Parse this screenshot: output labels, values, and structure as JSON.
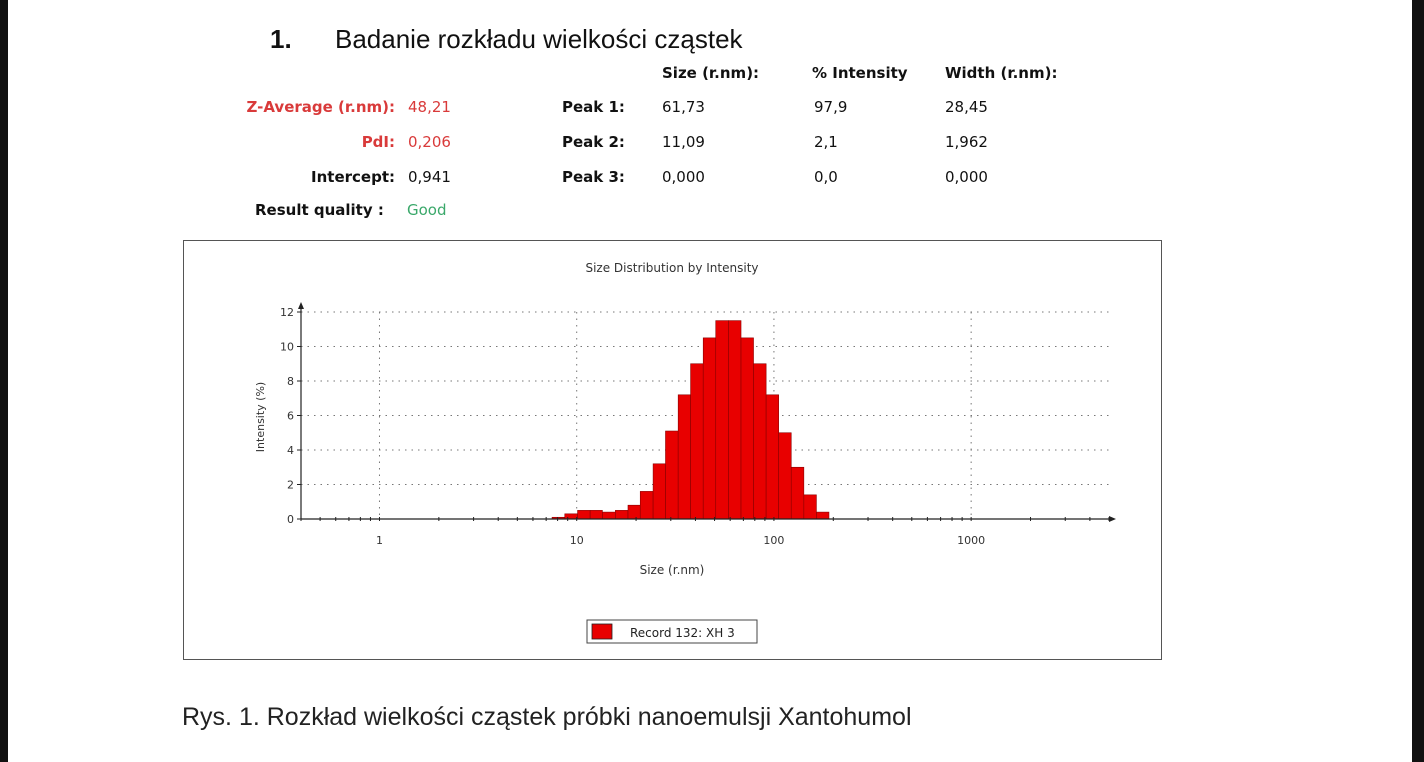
{
  "heading": {
    "number": "1.",
    "title": "Badanie rozkładu wielkości cząstek"
  },
  "results": {
    "columns": {
      "size": "Size (r.nm):",
      "intensity": "% Intensity",
      "width": "Width (r.nm):"
    },
    "z_average": {
      "label": "Z-Average (r.nm):",
      "value": "48,21"
    },
    "pdi": {
      "label": "PdI:",
      "value": "0,206"
    },
    "intercept": {
      "label": "Intercept:",
      "value": "0,941"
    },
    "quality": {
      "label": "Result quality :",
      "value": "Good"
    },
    "peaks": [
      {
        "label": "Peak 1:",
        "size": "61,73",
        "intensity": "97,9",
        "width": "28,45"
      },
      {
        "label": "Peak 2:",
        "size": "11,09",
        "intensity": "2,1",
        "width": "1,962"
      },
      {
        "label": "Peak 3:",
        "size": "0,000",
        "intensity": "0,0",
        "width": "0,000"
      }
    ]
  },
  "chart_data": {
    "type": "bar",
    "title": "Size Distribution by Intensity",
    "xlabel": "Size (r.nm)",
    "ylabel": "Intensity (%)",
    "x_scale": "log",
    "xlim": [
      0.4,
      5000
    ],
    "ylim": [
      0,
      12
    ],
    "x_ticks": [
      "1",
      "10",
      "100",
      "1000"
    ],
    "y_ticks": [
      "0",
      "2",
      "4",
      "6",
      "8",
      "10",
      "12"
    ],
    "grid": true,
    "legend_position": "bottom-center",
    "series": [
      {
        "name": "Record 132: XH 3",
        "color": "#e80000",
        "bins": [
          [
            7.5,
            8.7,
            0.1
          ],
          [
            8.7,
            10.1,
            0.3
          ],
          [
            10.1,
            11.7,
            0.5
          ],
          [
            11.7,
            13.5,
            0.5
          ],
          [
            13.5,
            15.7,
            0.4
          ],
          [
            15.7,
            18.2,
            0.5
          ],
          [
            18.2,
            21.0,
            0.8
          ],
          [
            21.0,
            24.4,
            1.6
          ],
          [
            24.4,
            28.2,
            3.2
          ],
          [
            28.2,
            32.7,
            5.1
          ],
          [
            32.7,
            37.8,
            7.2
          ],
          [
            37.8,
            43.8,
            9.0
          ],
          [
            43.8,
            50.7,
            10.5
          ],
          [
            50.7,
            58.8,
            11.5
          ],
          [
            58.8,
            68.1,
            11.5
          ],
          [
            68.1,
            78.8,
            10.5
          ],
          [
            78.8,
            91.3,
            9.0
          ],
          [
            91.3,
            105.7,
            7.2
          ],
          [
            105.7,
            122.4,
            5.0
          ],
          [
            122.4,
            141.8,
            3.0
          ],
          [
            141.8,
            164.2,
            1.4
          ],
          [
            164.2,
            190.1,
            0.4
          ]
        ]
      }
    ]
  },
  "caption": "Rys. 1. Rozkład wielkości cząstek próbki nanoemulsji Xantohumol"
}
